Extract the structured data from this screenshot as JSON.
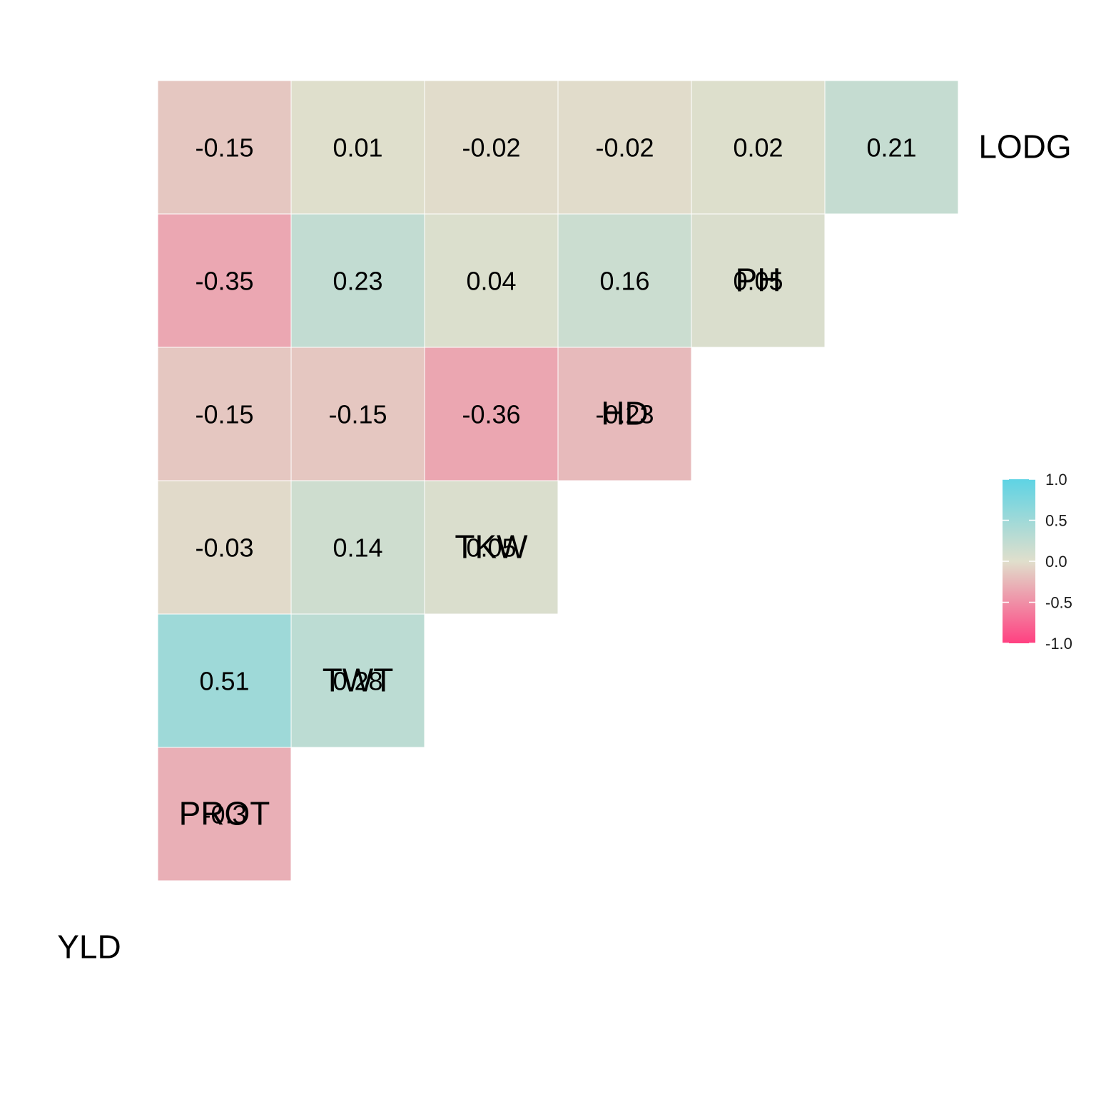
{
  "chart_data": {
    "type": "heatmap",
    "title": "",
    "variables": [
      "YLD",
      "PROT",
      "TWT",
      "TKW",
      "HD",
      "PH",
      "LODG"
    ],
    "cells": [
      {
        "row": "LODG",
        "col": "PH",
        "value": 0.21
      },
      {
        "row": "PH",
        "col": "HD",
        "value": 0.05
      },
      {
        "row": "LODG",
        "col": "HD",
        "value": 0.02
      },
      {
        "row": "HD",
        "col": "TKW",
        "value": -0.23
      },
      {
        "row": "PH",
        "col": "TKW",
        "value": 0.16
      },
      {
        "row": "LODG",
        "col": "TKW",
        "value": -0.02
      },
      {
        "row": "TKW",
        "col": "TWT",
        "value": 0.05
      },
      {
        "row": "HD",
        "col": "TWT",
        "value": -0.36
      },
      {
        "row": "PH",
        "col": "TWT",
        "value": 0.04
      },
      {
        "row": "LODG",
        "col": "TWT",
        "value": -0.02
      },
      {
        "row": "TWT",
        "col": "PROT",
        "value": 0.28
      },
      {
        "row": "TKW",
        "col": "PROT",
        "value": 0.14
      },
      {
        "row": "HD",
        "col": "PROT",
        "value": -0.15
      },
      {
        "row": "PH",
        "col": "PROT",
        "value": 0.23
      },
      {
        "row": "LODG",
        "col": "PROT",
        "value": 0.01
      },
      {
        "row": "PROT",
        "col": "YLD",
        "value": -0.3
      },
      {
        "row": "TWT",
        "col": "YLD",
        "value": 0.51
      },
      {
        "row": "TKW",
        "col": "YLD",
        "value": -0.03
      },
      {
        "row": "HD",
        "col": "YLD",
        "value": -0.15
      },
      {
        "row": "PH",
        "col": "YLD",
        "value": -0.35
      },
      {
        "row": "LODG",
        "col": "YLD",
        "value": -0.15
      }
    ],
    "color_scale": {
      "low": "#FF4081",
      "mid": "#E0DFCC",
      "high": "#5ED3E4",
      "limits": [
        -1,
        1
      ],
      "midpoint": 0
    },
    "legend": {
      "position": "right",
      "ticks": [
        "1.0",
        "0.5",
        "0.0",
        "-0.5",
        "-1.0"
      ],
      "tick_values": [
        1,
        0.5,
        0,
        -0.5,
        -1
      ]
    }
  }
}
